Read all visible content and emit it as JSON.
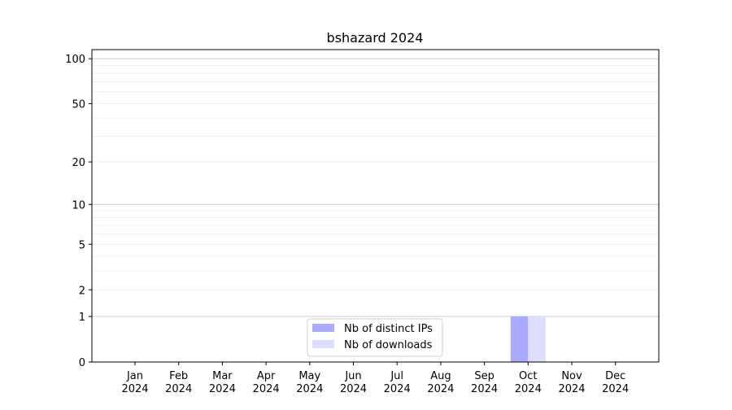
{
  "chart_data": {
    "type": "bar",
    "title": "bshazard 2024",
    "xlabel": "",
    "ylabel": "",
    "yscale": "log(1+y)",
    "ylim": [
      0,
      115
    ],
    "yticks": [
      0,
      1,
      2,
      5,
      10,
      20,
      50,
      100
    ],
    "grid": true,
    "legend_placement": "lower-center",
    "categories": [
      "Jan\n2024",
      "Feb\n2024",
      "Mar\n2024",
      "Apr\n2024",
      "May\n2024",
      "Jun\n2024",
      "Jul\n2024",
      "Aug\n2024",
      "Sep\n2024",
      "Oct\n2024",
      "Nov\n2024",
      "Dec\n2024"
    ],
    "series": [
      {
        "name": "Nb of distinct IPs",
        "color": "#aaaaff",
        "values": [
          0,
          0,
          0,
          0,
          0,
          0,
          0,
          0,
          0,
          1,
          0,
          0
        ]
      },
      {
        "name": "Nb of downloads",
        "color": "#ddddff",
        "values": [
          0,
          0,
          0,
          0,
          0,
          0,
          0,
          0,
          0,
          1,
          0,
          0
        ]
      }
    ]
  }
}
